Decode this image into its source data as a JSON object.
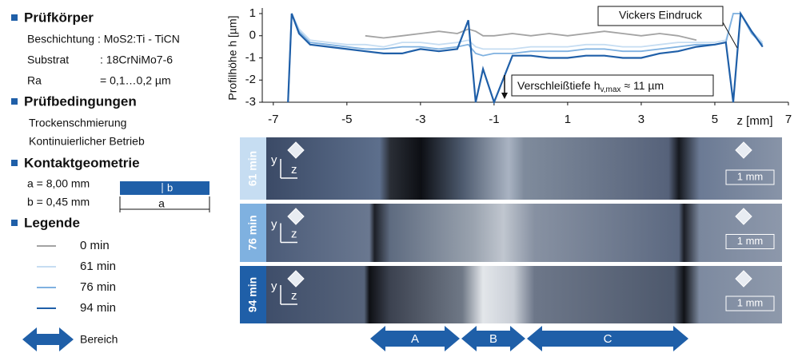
{
  "panel": {
    "specimen": {
      "title": "Prüfkörper",
      "coating": "Beschichtung : MoS2:Ti - TiCN",
      "substrate_label": "Substrat",
      "substrate": ": 18CrNiMo7-6",
      "ra_label": "Ra",
      "ra": "= 0,1…0,2 µm"
    },
    "conditions": {
      "title": "Prüfbedingungen",
      "lines": [
        "Trockenschmierung",
        "Kontinuierlicher Betrieb"
      ]
    },
    "contact": {
      "title": "Kontaktgeometrie",
      "a": "a = 8,00 mm",
      "b": "b = 0,45 mm",
      "b_symbol": "b",
      "a_symbol": "a"
    },
    "legend_title": "Legende",
    "region_label": "Bereich"
  },
  "micrographs": {
    "scale_label": "1 mm",
    "axis_y": "y",
    "axis_z": "z"
  },
  "regions": [
    "A",
    "B",
    "C"
  ],
  "chart_data": {
    "type": "line",
    "y_label": "Profilhöhe h [µm]",
    "x_label": "z [mm]",
    "annotations": {
      "vickers": "Vickers Eindruck",
      "wear_prefix": "Verschleißtiefe h",
      "wear_sub": "v,max",
      "wear_suffix": "≈ 11 µm"
    },
    "xlim": [
      -7.3,
      7
    ],
    "xticks": [
      -7,
      -5,
      -3,
      -1,
      1,
      3,
      5,
      7
    ],
    "ylim": [
      -3,
      1
    ],
    "yticks": [
      -3,
      -2,
      -1,
      0,
      1
    ],
    "x": [
      -6.6,
      -6.5,
      -6.3,
      -6,
      -5.5,
      -5,
      -4.5,
      -4,
      -3.5,
      -3,
      -2.5,
      -2,
      -1.7,
      -1.5,
      -1.3,
      -1,
      -0.5,
      0,
      0.5,
      1,
      1.5,
      2,
      2.5,
      3,
      3.5,
      4,
      4.5,
      5,
      5.3,
      5.5,
      5.7,
      6,
      6.3
    ],
    "series": [
      {
        "name": "0 min",
        "color": "#a3a3a3",
        "values": [
          null,
          null,
          null,
          null,
          null,
          null,
          0,
          -0.1,
          0,
          0.1,
          0.2,
          0.1,
          0.3,
          0.2,
          0,
          0,
          0.1,
          0,
          0.1,
          0,
          0.1,
          0.2,
          0.1,
          0,
          0.1,
          0,
          -0.2,
          null,
          null,
          null,
          null,
          null,
          null
        ]
      },
      {
        "name": "61 min",
        "color": "#c6ddf2",
        "values": [
          -3,
          1,
          0.3,
          -0.2,
          -0.3,
          -0.4,
          -0.4,
          -0.5,
          -0.3,
          -0.3,
          -0.4,
          -0.3,
          -0.2,
          -0.5,
          -0.6,
          -0.6,
          -0.6,
          -0.5,
          -0.5,
          -0.5,
          -0.4,
          -0.4,
          -0.5,
          -0.5,
          -0.4,
          -0.3,
          -0.3,
          -0.3,
          -0.2,
          1,
          1,
          0.2,
          -0.3
        ]
      },
      {
        "name": "76 min",
        "color": "#7fb1e0",
        "values": [
          -3,
          1,
          0.2,
          -0.3,
          -0.4,
          -0.5,
          -0.6,
          -0.6,
          -0.5,
          -0.5,
          -0.6,
          -0.5,
          -0.4,
          -0.8,
          -0.9,
          -0.8,
          -0.8,
          -0.7,
          -0.7,
          -0.7,
          -0.6,
          -0.6,
          -0.7,
          -0.7,
          -0.6,
          -0.5,
          -0.4,
          -0.4,
          -0.3,
          1,
          1,
          0.1,
          -0.4
        ]
      },
      {
        "name": "94 min",
        "color": "#1f5fa8",
        "values": [
          -3,
          1,
          0.1,
          -0.4,
          -0.5,
          -0.6,
          -0.7,
          -0.8,
          -0.8,
          -0.6,
          -0.7,
          -0.6,
          0.7,
          -3,
          -1.5,
          -3,
          -0.9,
          -0.9,
          -1,
          -1,
          -0.9,
          -0.9,
          -1,
          -1,
          -0.8,
          -0.7,
          -0.5,
          -0.4,
          -0.3,
          -3,
          1,
          0.2,
          -0.5
        ]
      }
    ]
  }
}
